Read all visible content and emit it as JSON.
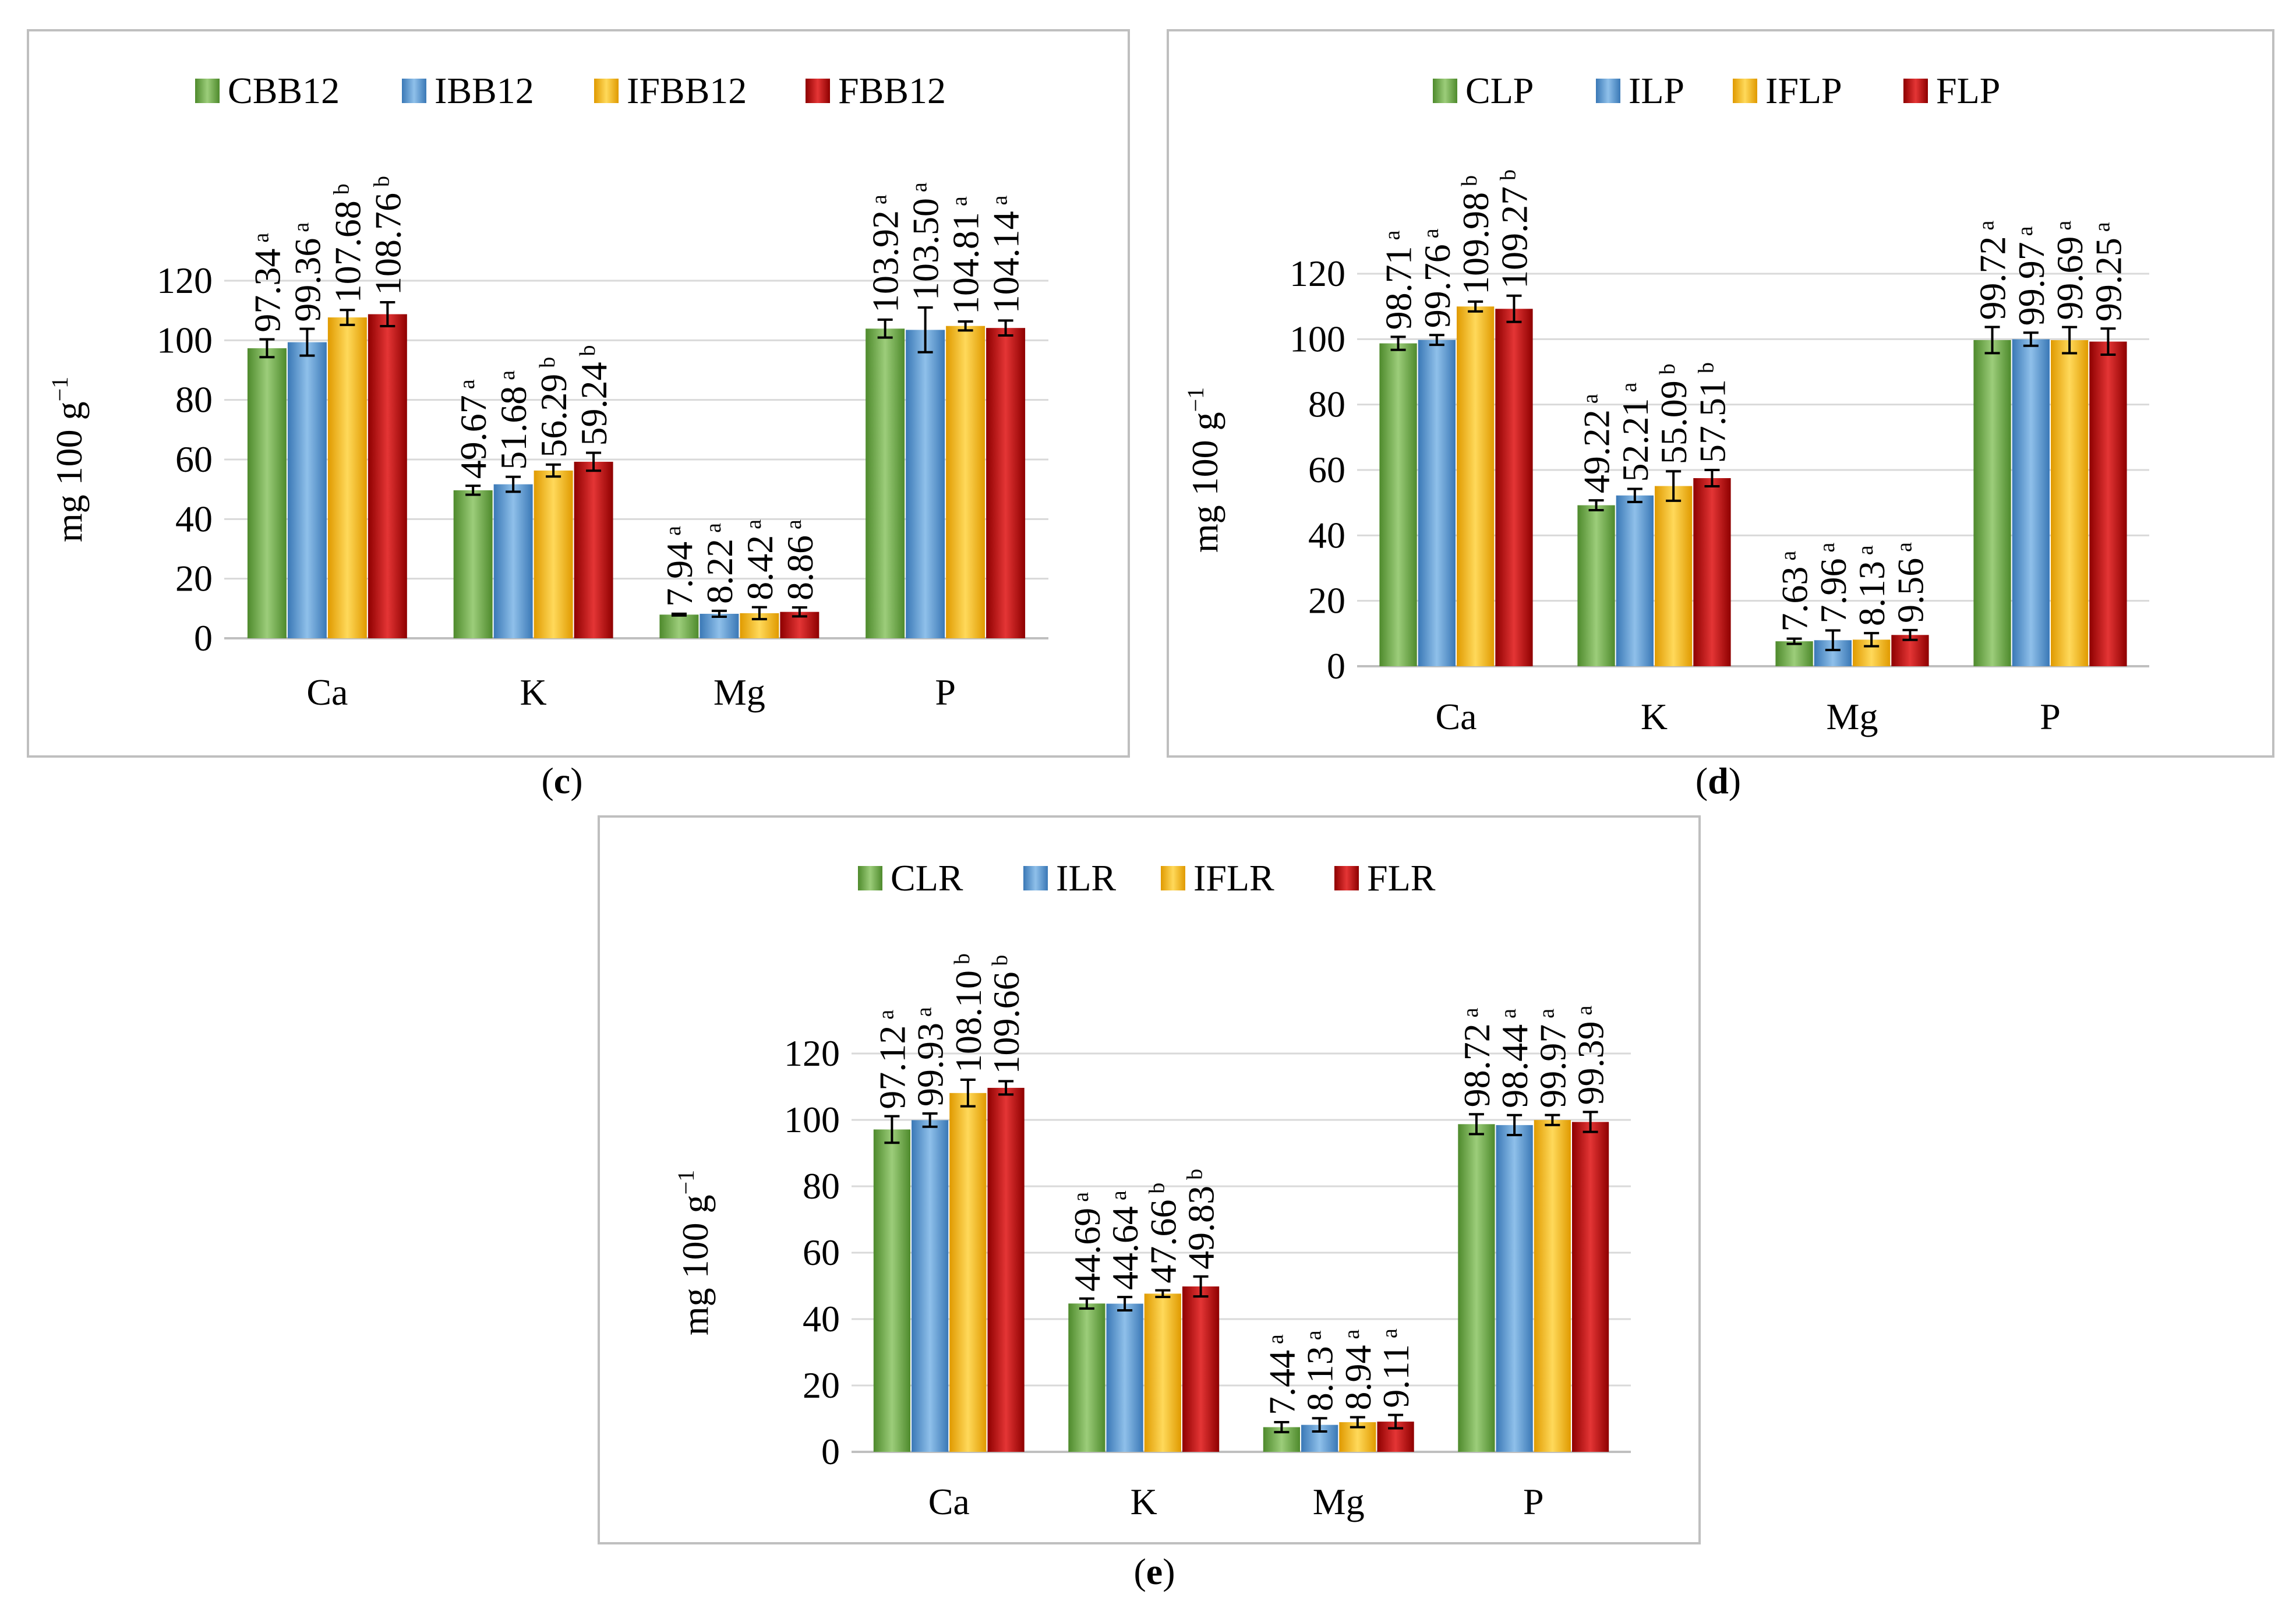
{
  "colors": {
    "green": "#70ad47",
    "green_dark": "#4e8a2c",
    "green_light": "#9ccd7a",
    "blue": "#5b9bd5",
    "blue_dark": "#3a78b6",
    "blue_light": "#8fc0ea",
    "yellow": "#ffc000",
    "yellow_dark": "#e09a00",
    "yellow_light": "#ffd95a",
    "red": "#c00000",
    "red_dark": "#8e0000",
    "red_light": "#e43535",
    "grid": "#d9d9d9",
    "frame": "#bfbfbf",
    "axis": "#bfbfbf"
  },
  "chart_data": [
    {
      "id": "c",
      "caption": {
        "open": "(",
        "letter": "c",
        "close": ")"
      },
      "type": "bar",
      "ylabel": "mg 100 g",
      "ylabel_sup": "−1",
      "ylim": [
        0,
        120
      ],
      "yticks": [
        "0",
        "20",
        "40",
        "60",
        "80",
        "100",
        "120"
      ],
      "grid": true,
      "legend_position": "top",
      "categories": [
        "Ca",
        "K",
        "Mg",
        "P"
      ],
      "series": [
        {
          "name": "CBB12",
          "color": "green",
          "values": [
            97.34,
            49.67,
            7.94,
            103.92
          ],
          "errors": [
            3.0,
            1.5,
            0.3,
            3.0
          ],
          "labels": [
            "97.34",
            "49.67",
            "7.94",
            "103.92"
          ],
          "letters": [
            "a",
            "a",
            "a",
            "a"
          ]
        },
        {
          "name": "IBB12",
          "color": "blue",
          "values": [
            99.36,
            51.68,
            8.22,
            103.5
          ],
          "errors": [
            4.5,
            2.5,
            1.0,
            7.5
          ],
          "labels": [
            "99.36",
            "51.68",
            "8.22",
            "103.50"
          ],
          "letters": [
            "a",
            "a",
            "a",
            "a"
          ]
        },
        {
          "name": "IFBB12",
          "color": "yellow",
          "values": [
            107.68,
            56.29,
            8.42,
            104.81
          ],
          "errors": [
            2.5,
            2.0,
            2.0,
            1.5
          ],
          "labels": [
            "107.68",
            "56.29",
            "8.42",
            "104.81"
          ],
          "letters": [
            "b",
            "b",
            "a",
            "a"
          ]
        },
        {
          "name": "FBB12",
          "color": "red",
          "values": [
            108.76,
            59.24,
            8.86,
            104.14
          ],
          "errors": [
            4.0,
            3.0,
            1.5,
            2.5
          ],
          "labels": [
            "108.76",
            "59.24",
            "8.86",
            "104.14"
          ],
          "letters": [
            "b",
            "b",
            "a",
            "a"
          ]
        }
      ]
    },
    {
      "id": "d",
      "caption": {
        "open": "(",
        "letter": "d",
        "close": ")"
      },
      "type": "bar",
      "ylabel": "mg 100 g",
      "ylabel_sup": "−1",
      "ylim": [
        0,
        120
      ],
      "yticks": [
        "0",
        "20",
        "40",
        "60",
        "80",
        "100",
        "120"
      ],
      "grid": true,
      "legend_position": "top",
      "categories": [
        "Ca",
        "K",
        "Mg",
        "P"
      ],
      "series": [
        {
          "name": "CLP",
          "color": "green",
          "values": [
            98.71,
            49.22,
            7.63,
            99.72
          ],
          "errors": [
            2.0,
            1.5,
            0.8,
            4.0
          ],
          "labels": [
            "98.71",
            "49.22",
            "7.63",
            "99.72"
          ],
          "letters": [
            "a",
            "a",
            "a",
            "a"
          ]
        },
        {
          "name": "ILP",
          "color": "blue",
          "values": [
            99.76,
            52.21,
            7.96,
            99.97
          ],
          "errors": [
            1.5,
            2.0,
            3.0,
            2.0
          ],
          "labels": [
            "99.76",
            "52.21",
            "7.96",
            "99.97"
          ],
          "letters": [
            "a",
            "a",
            "a",
            "a"
          ]
        },
        {
          "name": "IFLP",
          "color": "yellow",
          "values": [
            109.98,
            55.09,
            8.13,
            99.69
          ],
          "errors": [
            1.5,
            4.5,
            2.0,
            4.0
          ],
          "labels": [
            "109.98",
            "55.09",
            "8.13",
            "99.69"
          ],
          "letters": [
            "b",
            "b",
            "a",
            "a"
          ]
        },
        {
          "name": "FLP",
          "color": "red",
          "values": [
            109.27,
            57.51,
            9.56,
            99.25
          ],
          "errors": [
            4.0,
            2.5,
            1.5,
            4.0
          ],
          "labels": [
            "109.27",
            "57.51",
            "9.56",
            "99.25"
          ],
          "letters": [
            "b",
            "b",
            "a",
            "a"
          ]
        }
      ]
    },
    {
      "id": "e",
      "caption": {
        "open": "(",
        "letter": "e",
        "close": ")"
      },
      "type": "bar",
      "ylabel": "mg 100 g",
      "ylabel_sup": "−1",
      "ylim": [
        0,
        120
      ],
      "yticks": [
        "0",
        "20",
        "40",
        "60",
        "80",
        "100",
        "120"
      ],
      "grid": true,
      "legend_position": "top",
      "categories": [
        "Ca",
        "K",
        "Mg",
        "P"
      ],
      "series": [
        {
          "name": "CLR",
          "color": "green",
          "values": [
            97.12,
            44.69,
            7.44,
            98.72
          ],
          "errors": [
            4.0,
            1.5,
            1.5,
            3.0
          ],
          "labels": [
            "97.12",
            "44.69",
            "7.44",
            "98.72"
          ],
          "letters": [
            "a",
            "a",
            "a",
            "a"
          ]
        },
        {
          "name": "ILR",
          "color": "blue",
          "values": [
            99.93,
            44.64,
            8.13,
            98.44
          ],
          "errors": [
            2.0,
            2.0,
            2.0,
            3.0
          ],
          "labels": [
            "99.93",
            "44.64",
            "8.13",
            "98.44"
          ],
          "letters": [
            "a",
            "a",
            "a",
            "a"
          ]
        },
        {
          "name": "IFLR",
          "color": "yellow",
          "values": [
            108.1,
            47.66,
            8.94,
            99.97
          ],
          "errors": [
            4.0,
            1.0,
            1.5,
            1.5
          ],
          "labels": [
            "108.10",
            "47.66",
            "8.94",
            "99.97"
          ],
          "letters": [
            "b",
            "b",
            "a",
            "a"
          ]
        },
        {
          "name": "FLR",
          "color": "red",
          "values": [
            109.66,
            49.83,
            9.11,
            99.39
          ],
          "errors": [
            2.0,
            3.0,
            2.0,
            3.0
          ],
          "labels": [
            "109.66",
            "49.83",
            "9.11",
            "99.39"
          ],
          "letters": [
            "b",
            "b",
            "a",
            "a"
          ]
        }
      ]
    }
  ]
}
